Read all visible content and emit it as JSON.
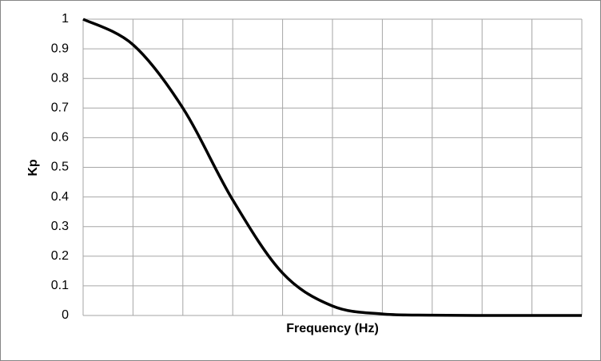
{
  "chart_data": {
    "type": "line",
    "x_label": "Frequency (Hz)",
    "y_label": "Kp",
    "categories": [
      null,
      null,
      null,
      null,
      null,
      null,
      null,
      null,
      null,
      null,
      null
    ],
    "series": [
      {
        "color": "#000000",
        "values": [
          1.0,
          0.914,
          0.7,
          0.39,
          0.143,
          0.032,
          0.005,
          0.001,
          0,
          0,
          0
        ]
      }
    ],
    "ylim": [
      0,
      1
    ],
    "yticks": [
      0,
      0.1,
      0.2,
      0.3,
      0.4,
      0.5,
      0.6,
      0.7,
      0.8,
      0.9,
      1
    ],
    "grid": true
  }
}
